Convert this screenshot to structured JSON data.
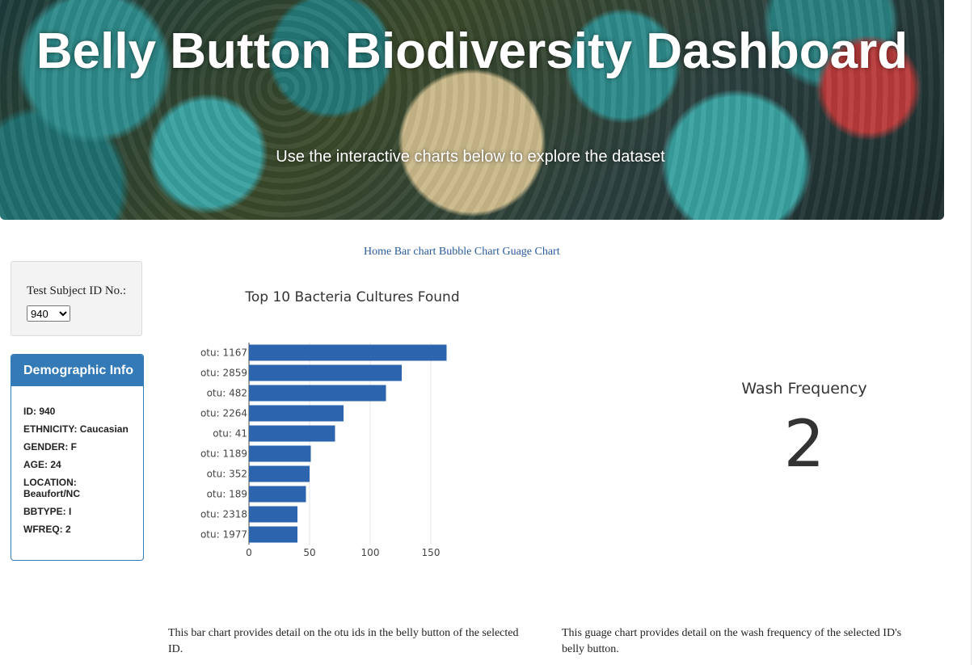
{
  "header": {
    "title": "Belly Button Biodiversity Dashboard",
    "subtitle": "Use the interactive charts below to explore the dataset"
  },
  "nav": {
    "links": [
      "Home",
      "Bar chart",
      "Bubble Chart",
      "Guage Chart"
    ]
  },
  "selector": {
    "label": "Test Subject ID No.:",
    "selected": "940"
  },
  "demographics": {
    "heading": "Demographic Info",
    "rows": [
      "ID: 940",
      "ETHNICITY: Caucasian",
      "GENDER: F",
      "AGE: 24",
      "LOCATION: Beaufort/NC",
      "BBTYPE: I",
      "WFREQ: 2"
    ]
  },
  "gauge": {
    "title": "Wash Frequency",
    "value": "2"
  },
  "descriptions": {
    "bar": "This bar chart provides detail on the otu ids in the belly button of the selected ID.",
    "gauge": "This guage chart provides detail on the wash frequency of the selected ID's belly button."
  },
  "colors": {
    "bar": "#2c64ad",
    "panel": "#337ab7"
  },
  "chart_data": {
    "type": "bar",
    "orientation": "horizontal",
    "title": "Top 10 Bacteria Cultures Found",
    "categories": [
      "otu: 1167",
      "otu: 2859",
      "otu: 482",
      "otu: 2264",
      "otu: 41",
      "otu: 1189",
      "otu: 352",
      "otu: 189",
      "otu: 2318",
      "otu: 1977"
    ],
    "values": [
      163,
      126,
      113,
      78,
      71,
      51,
      50,
      47,
      40,
      40
    ],
    "xlim": [
      0,
      170
    ],
    "xticks": [
      0,
      50,
      100,
      150
    ],
    "grid": true
  }
}
